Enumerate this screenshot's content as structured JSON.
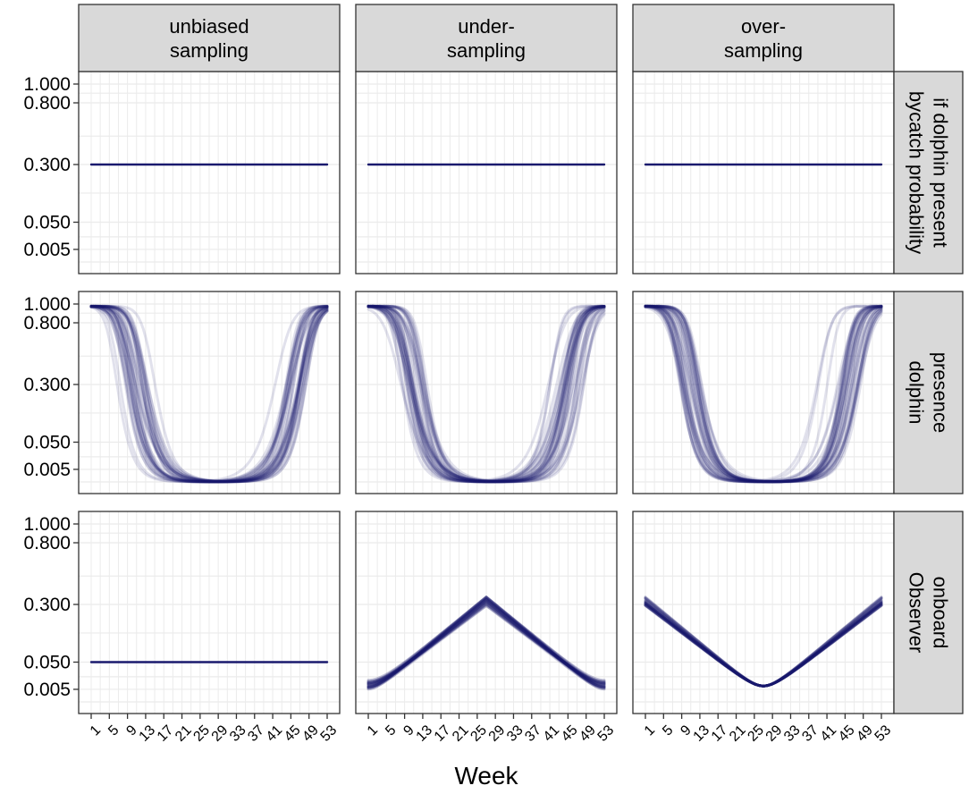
{
  "chart_data": {
    "type": "line",
    "xlabel": "Week",
    "ylabel": "",
    "x_ticks": [
      1,
      5,
      9,
      13,
      17,
      21,
      25,
      29,
      33,
      37,
      41,
      45,
      49,
      53
    ],
    "xlim": [
      1,
      53
    ],
    "y_ticks": [
      "1.000",
      "0.800",
      "0.300",
      "0.050",
      "0.005"
    ],
    "y_tick_values": [
      1.0,
      0.8,
      0.3,
      0.05,
      0.005
    ],
    "columns": [
      {
        "key": "unbiased",
        "label_lines": [
          "unbiased",
          "sampling"
        ]
      },
      {
        "key": "under",
        "label_lines": [
          "under-",
          "sampling"
        ]
      },
      {
        "key": "over",
        "label_lines": [
          "over-",
          "sampling"
        ]
      }
    ],
    "rows": [
      {
        "key": "bycatch",
        "label_lines": [
          "bycatch probability",
          "if dolphin present"
        ]
      },
      {
        "key": "dolphin",
        "label_lines": [
          "dolphin",
          "presence"
        ]
      },
      {
        "key": "observer",
        "label_lines": [
          "Observer",
          "onboard"
        ]
      }
    ],
    "line_color": "#1a1a6e",
    "strip_fill": "#d9d9d9",
    "grid_color": "#ebebeb",
    "series": [
      {
        "name": "",
        "row": "bycatch",
        "column": "unbiased",
        "form": "constant",
        "value": 0.3,
        "replicates": 1
      },
      {
        "name": "",
        "row": "bycatch",
        "column": "under",
        "form": "constant",
        "value": 0.3,
        "replicates": 1
      },
      {
        "name": "",
        "row": "bycatch",
        "column": "over",
        "form": "constant",
        "value": 0.3,
        "replicates": 1
      },
      {
        "name": "",
        "row": "dolphin",
        "column": "unbiased",
        "form": "u-shape",
        "high": 0.98,
        "low": 0.0,
        "fall_mid": 10,
        "rise_mid": 47,
        "replicates": 40
      },
      {
        "name": "",
        "row": "dolphin",
        "column": "under",
        "form": "u-shape",
        "high": 0.98,
        "low": 0.0,
        "fall_mid": 10,
        "rise_mid": 47,
        "replicates": 40
      },
      {
        "name": "",
        "row": "dolphin",
        "column": "over",
        "form": "u-shape",
        "high": 0.98,
        "low": 0.0,
        "fall_mid": 10,
        "rise_mid": 47,
        "replicates": 40
      },
      {
        "name": "",
        "row": "observer",
        "column": "unbiased",
        "form": "constant",
        "value": 0.05,
        "replicates": 1
      },
      {
        "name": "",
        "row": "observer",
        "column": "under",
        "form": "peak",
        "x": [
          1,
          27,
          53
        ],
        "y": [
          0.01,
          0.32,
          0.01
        ],
        "replicates": 40
      },
      {
        "name": "",
        "row": "observer",
        "column": "over",
        "form": "trough",
        "x": [
          1,
          27,
          53
        ],
        "y": [
          0.32,
          0.008,
          0.32
        ],
        "replicates": 40
      }
    ]
  }
}
